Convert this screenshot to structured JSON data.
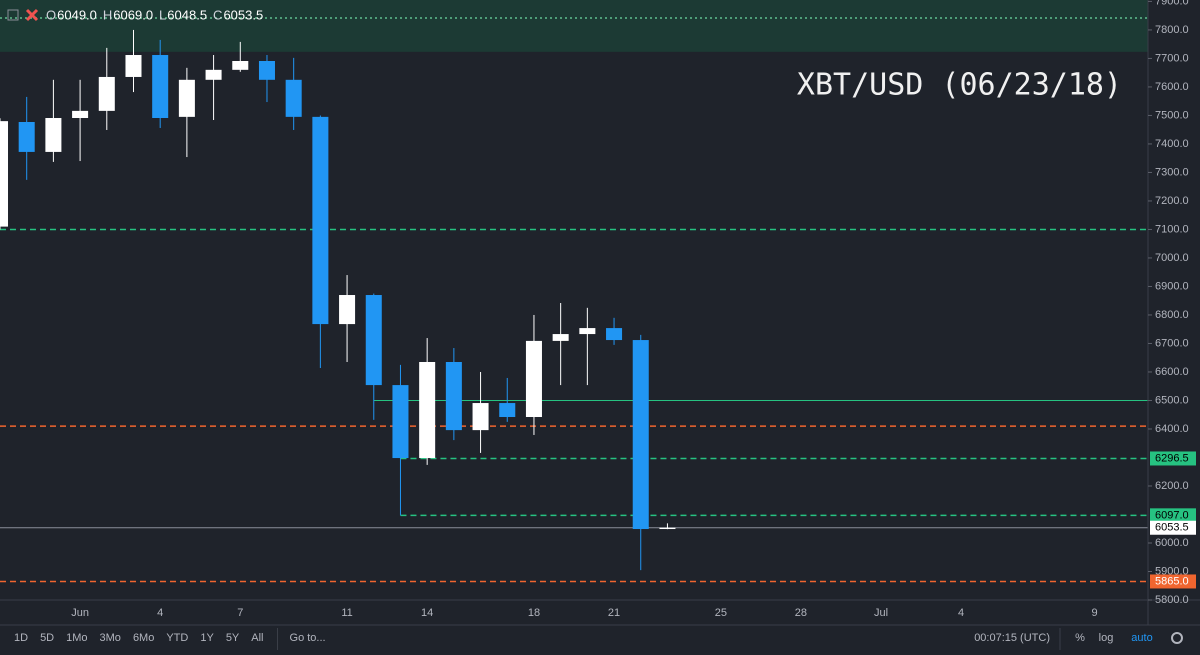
{
  "chart_data": {
    "type": "candlestick",
    "title": "XBT/USD (06/23/18)",
    "ohlc_legend": [
      {
        "key": "O",
        "value": 6049,
        "label": "6049.0"
      },
      {
        "key": "H",
        "value": 6069,
        "label": "6069.0"
      },
      {
        "key": "L",
        "value": 6048.5,
        "label": "6048.5"
      },
      {
        "key": "C",
        "value": 6053.5,
        "label": "6053.5"
      }
    ],
    "x": [
      "05-29",
      "05-30",
      "05-31",
      "06-01",
      "06-02",
      "06-03",
      "06-04",
      "06-05",
      "06-06",
      "06-07",
      "06-08",
      "06-09",
      "06-10",
      "06-11",
      "06-12",
      "06-13",
      "06-14",
      "06-15",
      "06-16",
      "06-17",
      "06-18",
      "06-19",
      "06-20",
      "06-21",
      "06-22",
      "06-23"
    ],
    "open": [
      7110,
      7477,
      7372,
      7491,
      7516,
      7635,
      7712,
      7495,
      7625,
      7660,
      7691,
      7625,
      7495,
      6768,
      6870,
      6554,
      6298,
      6635,
      6396,
      6491,
      6442,
      6709,
      6733,
      6754,
      6712,
      6049
    ],
    "high": [
      7490,
      7565,
      7625,
      7625,
      7737,
      7800,
      7765,
      7667,
      7712,
      7758,
      7712,
      7702,
      7500,
      6940,
      6875,
      6625,
      6719,
      6684,
      6600,
      6579,
      6800,
      6842,
      6825,
      6790,
      6730,
      6069
    ],
    "low": [
      7100,
      7274,
      7337,
      7340,
      7449,
      7582,
      7456,
      7354,
      7484,
      7653,
      7547,
      7449,
      6614,
      6635,
      6432,
      6097,
      6274,
      6361,
      6316,
      6425,
      6379,
      6554,
      6554,
      6695,
      5905,
      6048.5
    ],
    "close": [
      7480,
      7372,
      7491,
      7516,
      7635,
      7712,
      7491,
      7625,
      7660,
      7691,
      7625,
      7495,
      6768,
      6870,
      6554,
      6298,
      6635,
      6396,
      6491,
      6442,
      6709,
      6733,
      6754,
      6712,
      6049,
      6053.5
    ],
    "up_color": "#ffffff",
    "down_color": "#2196f3",
    "xlim": [
      "05-29",
      "07-11"
    ],
    "xticks": [
      {
        "value": "06-01",
        "label": "Jun"
      },
      {
        "value": "06-04",
        "label": "4"
      },
      {
        "value": "06-07",
        "label": "7"
      },
      {
        "value": "06-11",
        "label": "11"
      },
      {
        "value": "06-14",
        "label": "14"
      },
      {
        "value": "06-18",
        "label": "18"
      },
      {
        "value": "06-21",
        "label": "21"
      },
      {
        "value": "06-25",
        "label": "25"
      },
      {
        "value": "06-28",
        "label": "28"
      },
      {
        "value": "07-01",
        "label": "Jul"
      },
      {
        "value": "07-04",
        "label": "4"
      },
      {
        "value": "07-09",
        "label": "9"
      }
    ],
    "ylim": [
      5800,
      7905
    ],
    "yticks": [
      {
        "value": 5800,
        "label": "5800.0"
      },
      {
        "value": 5900,
        "label": "5900.0"
      },
      {
        "value": 6000,
        "label": "6000.0"
      },
      {
        "value": 6200,
        "label": "6200.0"
      },
      {
        "value": 6400,
        "label": "6400.0"
      },
      {
        "value": 6500,
        "label": "6500.0"
      },
      {
        "value": 6600,
        "label": "6600.0"
      },
      {
        "value": 6700,
        "label": "6700.0"
      },
      {
        "value": 6800,
        "label": "6800.0"
      },
      {
        "value": 6900,
        "label": "6900.0"
      },
      {
        "value": 7000,
        "label": "7000.0"
      },
      {
        "value": 7100,
        "label": "7100.0"
      },
      {
        "value": 7200,
        "label": "7200.0"
      },
      {
        "value": 7300,
        "label": "7300.0"
      },
      {
        "value": 7400,
        "label": "7400.0"
      },
      {
        "value": 7500,
        "label": "7500.0"
      },
      {
        "value": 7600,
        "label": "7600.0"
      },
      {
        "value": 7700,
        "label": "7700.0"
      },
      {
        "value": 7800,
        "label": "7800.0"
      },
      {
        "value": 7900,
        "label": "7900.0"
      }
    ],
    "zone": {
      "low": 7723,
      "color": "#1c3a34"
    },
    "levels": [
      {
        "value": 7842,
        "color": "#5fbf8f",
        "style": "dotted"
      },
      {
        "value": 7100,
        "color": "#26c281",
        "style": "dashed"
      },
      {
        "value": 6500,
        "color": "#26c281",
        "style": "solid",
        "from": "06-12"
      },
      {
        "value": 6410,
        "color": "#f0652f",
        "style": "dashed"
      },
      {
        "value": 6296.5,
        "color": "#26c281",
        "style": "dashed",
        "from": "06-13",
        "label": "6296.5"
      },
      {
        "value": 6097,
        "color": "#26c281",
        "style": "dashed",
        "from": "06-13",
        "label": "6097.0"
      },
      {
        "value": 6053.5,
        "color": "#8a8e99",
        "style": "solid",
        "label": "6053.5"
      },
      {
        "value": 5865,
        "color": "#f0652f",
        "style": "dashed",
        "label": "5865.0"
      }
    ]
  },
  "toolbar": {
    "ranges": [
      "1D",
      "5D",
      "1Mo",
      "3Mo",
      "6Mo",
      "YTD",
      "1Y",
      "5Y",
      "All"
    ],
    "goto": "Go to...",
    "clock": "00:07:15 (UTC)",
    "options": [
      "%",
      "log",
      "auto"
    ]
  }
}
